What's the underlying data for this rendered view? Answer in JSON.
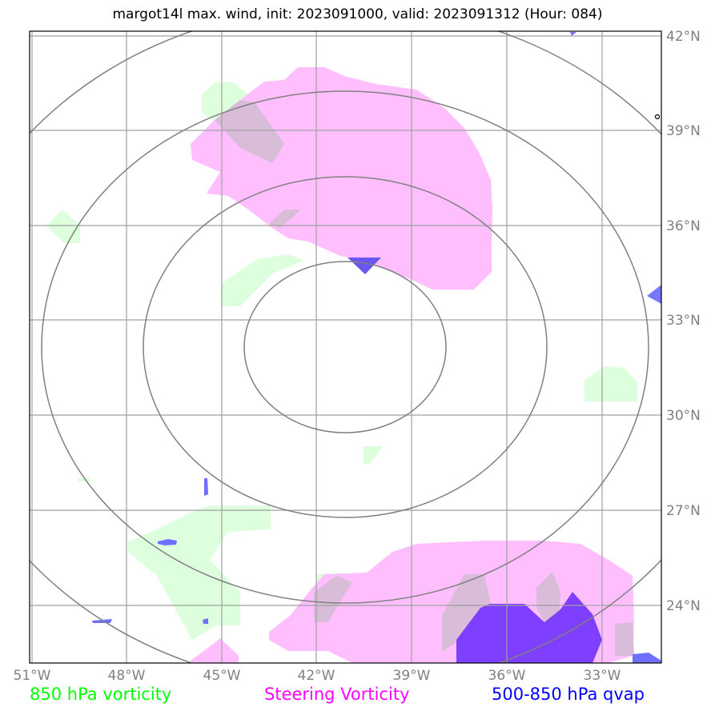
{
  "title": "margot14l max. wind, init: 2023091000, valid: 2023091312 (Hour: 084)",
  "map": {
    "lon_labels": [
      "51°W",
      "48°W",
      "45°W",
      "42°W",
      "39°W",
      "36°W",
      "33°W"
    ],
    "lat_labels": [
      "42°N",
      "39°N",
      "36°N",
      "33°N",
      "30°N",
      "27°N",
      "24°N"
    ],
    "colors": {
      "grid": "#a0a0a0",
      "rings": "#808080",
      "vorticity_850": "#ddffdd",
      "steering_vorticity": "#ffbfff",
      "qvap": "#3333ff"
    }
  },
  "legend": [
    {
      "label": "850 hPa vorticity",
      "color": "#00ff00"
    },
    {
      "label": "Steering Vorticity",
      "color": "#ff00ff"
    },
    {
      "label": "500-850 hPa qvap",
      "color": "#0000ff"
    }
  ]
}
